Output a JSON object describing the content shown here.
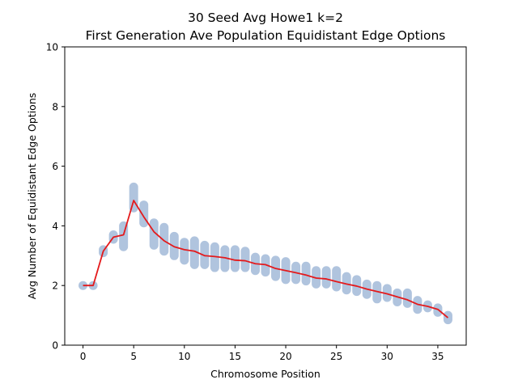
{
  "chart_data": {
    "type": "scatter",
    "title": "30 Seed Avg Howe1 k=2",
    "subtitle": "First Generation Ave Population Equidistant Edge Options",
    "xlabel": "Chromosome Position",
    "ylabel": "Avg Number of Equidistant Edge Options",
    "xlim": [
      -1.8,
      37.8
    ],
    "ylim": [
      0,
      10
    ],
    "xticks": [
      0,
      5,
      10,
      15,
      20,
      25,
      30,
      35
    ],
    "yticks": [
      0,
      2,
      4,
      6,
      8,
      10
    ],
    "grid": false,
    "legend": "none",
    "scatter_color": "#b0c4de",
    "line_color": "#e41a1c",
    "series": [
      {
        "type": "scatter",
        "x": [
          0,
          1,
          2,
          3,
          4,
          5,
          6,
          7,
          8,
          9,
          10,
          11,
          12,
          13,
          14,
          15,
          16,
          17,
          18,
          19,
          20,
          21,
          22,
          23,
          24,
          25,
          26,
          27,
          28,
          29,
          30,
          31,
          32,
          33,
          34,
          35,
          36
        ],
        "y_min": [
          2.0,
          2.0,
          3.1,
          3.55,
          3.3,
          4.6,
          4.1,
          3.35,
          3.15,
          3.0,
          2.85,
          2.7,
          2.7,
          2.6,
          2.6,
          2.6,
          2.6,
          2.5,
          2.45,
          2.3,
          2.2,
          2.2,
          2.15,
          2.05,
          2.05,
          1.95,
          1.85,
          1.8,
          1.7,
          1.55,
          1.6,
          1.45,
          1.4,
          1.2,
          1.25,
          1.1,
          0.85
        ],
        "y_max": [
          2.0,
          2.0,
          3.2,
          3.7,
          4.0,
          5.3,
          4.7,
          4.1,
          3.95,
          3.65,
          3.45,
          3.5,
          3.35,
          3.3,
          3.2,
          3.2,
          3.15,
          2.95,
          2.9,
          2.85,
          2.8,
          2.65,
          2.65,
          2.5,
          2.5,
          2.5,
          2.3,
          2.2,
          2.05,
          2.0,
          1.9,
          1.75,
          1.75,
          1.5,
          1.35,
          1.25,
          1.0
        ]
      },
      {
        "type": "line",
        "x": [
          0,
          1,
          2,
          3,
          4,
          5,
          6,
          7,
          8,
          9,
          10,
          11,
          12,
          13,
          14,
          15,
          16,
          17,
          18,
          19,
          20,
          21,
          22,
          23,
          24,
          25,
          26,
          27,
          28,
          29,
          30,
          31,
          32,
          33,
          34,
          35,
          36
        ],
        "y": [
          2.0,
          2.0,
          3.15,
          3.62,
          3.7,
          4.85,
          4.3,
          3.8,
          3.5,
          3.3,
          3.2,
          3.15,
          3.0,
          2.97,
          2.93,
          2.85,
          2.83,
          2.73,
          2.7,
          2.57,
          2.5,
          2.43,
          2.35,
          2.25,
          2.22,
          2.13,
          2.05,
          1.98,
          1.88,
          1.8,
          1.72,
          1.62,
          1.52,
          1.37,
          1.3,
          1.2,
          0.92
        ]
      }
    ]
  }
}
